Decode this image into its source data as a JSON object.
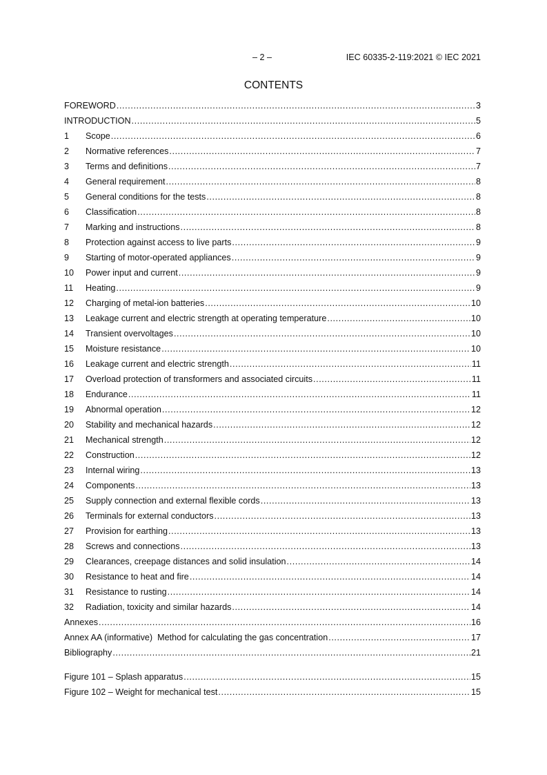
{
  "header": {
    "page_number": "– 2 –",
    "document_id": "IEC 60335-2-119:2021 © IEC 2021"
  },
  "title": "CONTENTS",
  "entries": [
    {
      "num": "",
      "label": "FOREWORD",
      "page": "3"
    },
    {
      "num": "",
      "label": "INTRODUCTION",
      "page": "5"
    },
    {
      "num": "1",
      "label": "Scope",
      "page": "6"
    },
    {
      "num": "2",
      "label": "Normative references",
      "page": "7"
    },
    {
      "num": "3",
      "label": "Terms and definitions",
      "page": "7"
    },
    {
      "num": "4",
      "label": "General requirement",
      "page": "8"
    },
    {
      "num": "5",
      "label": "General conditions for the tests",
      "page": "8"
    },
    {
      "num": "6",
      "label": "Classification",
      "page": "8"
    },
    {
      "num": "7",
      "label": "Marking and instructions",
      "page": "8"
    },
    {
      "num": "8",
      "label": "Protection against access to live parts",
      "page": "9"
    },
    {
      "num": "9",
      "label": "Starting of motor-operated appliances",
      "page": "9"
    },
    {
      "num": "10",
      "label": "Power input and current",
      "page": "9"
    },
    {
      "num": "11",
      "label": "Heating",
      "page": "9"
    },
    {
      "num": "12",
      "label": "Charging of metal-ion batteries",
      "page": "10"
    },
    {
      "num": "13",
      "label": "Leakage current and electric strength at operating temperature",
      "page": "10"
    },
    {
      "num": "14",
      "label": "Transient overvoltages",
      "page": "10"
    },
    {
      "num": "15",
      "label": "Moisture resistance",
      "page": "10"
    },
    {
      "num": "16",
      "label": "Leakage current and electric strength",
      "page": "11"
    },
    {
      "num": "17",
      "label": "Overload protection of transformers and associated circuits",
      "page": "11"
    },
    {
      "num": "18",
      "label": "Endurance",
      "page": "11"
    },
    {
      "num": "19",
      "label": "Abnormal operation",
      "page": "12"
    },
    {
      "num": "20",
      "label": "Stability and mechanical hazards",
      "page": "12"
    },
    {
      "num": "21",
      "label": "Mechanical strength",
      "page": "12"
    },
    {
      "num": "22",
      "label": "Construction",
      "page": "12"
    },
    {
      "num": "23",
      "label": "Internal wiring",
      "page": "13"
    },
    {
      "num": "24",
      "label": "Components",
      "page": "13"
    },
    {
      "num": "25",
      "label": "Supply connection and external flexible cords",
      "page": "13"
    },
    {
      "num": "26",
      "label": "Terminals for external conductors",
      "page": "13"
    },
    {
      "num": "27",
      "label": "Provision for earthing",
      "page": "13"
    },
    {
      "num": "28",
      "label": "Screws and connections",
      "page": "13"
    },
    {
      "num": "29",
      "label": "Clearances, creepage distances and solid insulation",
      "page": "14"
    },
    {
      "num": "30",
      "label": "Resistance to heat and fire",
      "page": "14"
    },
    {
      "num": "31",
      "label": "Resistance to rusting",
      "page": "14"
    },
    {
      "num": "32",
      "label": "Radiation, toxicity and similar hazards",
      "page": "14"
    },
    {
      "num": "",
      "label": "Annexes",
      "page": "16"
    },
    {
      "num": "",
      "label": "Annex AA (informative)  Method for calculating the gas concentration",
      "page": "17"
    },
    {
      "num": "",
      "label": "Bibliography",
      "page": "21"
    }
  ],
  "figures": [
    {
      "label": "Figure 101 – Splash apparatus",
      "page": "15"
    },
    {
      "label": "Figure 102 – Weight for mechanical test",
      "page": "15"
    }
  ]
}
